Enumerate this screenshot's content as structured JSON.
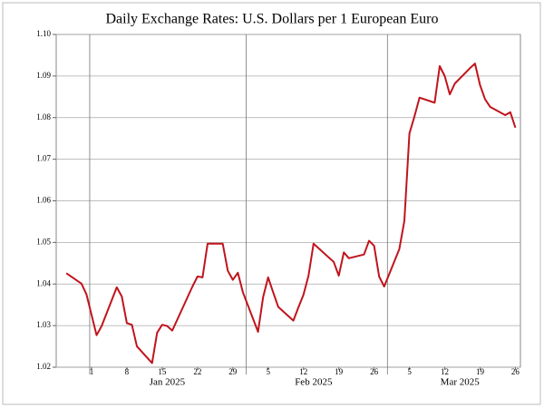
{
  "chart_data": {
    "type": "line",
    "title": "Daily Exchange Rates: U.S. Dollars per 1 European Euro",
    "x": [
      "2024-12-27",
      "2024-12-30",
      "2024-12-31",
      "2025-01-02",
      "2025-01-03",
      "2025-01-06",
      "2025-01-07",
      "2025-01-08",
      "2025-01-09",
      "2025-01-10",
      "2025-01-13",
      "2025-01-14",
      "2025-01-15",
      "2025-01-16",
      "2025-01-17",
      "2025-01-21",
      "2025-01-22",
      "2025-01-23",
      "2025-01-24",
      "2025-01-27",
      "2025-01-28",
      "2025-01-29",
      "2025-01-30",
      "2025-01-31",
      "2025-02-03",
      "2025-02-04",
      "2025-02-05",
      "2025-02-06",
      "2025-02-07",
      "2025-02-10",
      "2025-02-11",
      "2025-02-12",
      "2025-02-13",
      "2025-02-14",
      "2025-02-18",
      "2025-02-19",
      "2025-02-20",
      "2025-02-21",
      "2025-02-24",
      "2025-02-25",
      "2025-02-26",
      "2025-02-27",
      "2025-02-28",
      "2025-03-03",
      "2025-03-04",
      "2025-03-05",
      "2025-03-06",
      "2025-03-07",
      "2025-03-10",
      "2025-03-11",
      "2025-03-12",
      "2025-03-13",
      "2025-03-14",
      "2025-03-17",
      "2025-03-18",
      "2025-03-19",
      "2025-03-20",
      "2025-03-21",
      "2025-03-24",
      "2025-03-25",
      "2025-03-26"
    ],
    "series": [
      {
        "color": "#c0141c",
        "values": [
          1.0426,
          1.0401,
          1.0375,
          1.0277,
          1.0299,
          1.0392,
          1.037,
          1.0306,
          1.0302,
          1.025,
          1.021,
          1.0283,
          1.0302,
          1.0299,
          1.0288,
          1.0394,
          1.0418,
          1.0416,
          1.0497,
          1.0497,
          1.0432,
          1.041,
          1.0427,
          1.038,
          1.0285,
          1.0368,
          1.0416,
          1.038,
          1.0345,
          1.0312,
          1.0344,
          1.0374,
          1.042,
          1.0497,
          1.0453,
          1.042,
          1.0476,
          1.0462,
          1.0471,
          1.0504,
          1.0492,
          1.0418,
          1.0394,
          1.0484,
          1.0552,
          1.0762,
          1.0803,
          1.0848,
          1.0836,
          1.0924,
          1.09,
          1.0856,
          1.0882,
          1.0919,
          1.093,
          1.0878,
          1.0844,
          1.0826,
          1.0806,
          1.0813,
          1.0776
        ]
      }
    ],
    "xlim": [
      "2024-12-25",
      "2025-03-27"
    ],
    "xticks": [
      {
        "value": "2025-01-01",
        "label": "1"
      },
      {
        "value": "2025-01-08",
        "label": "8"
      },
      {
        "value": "2025-01-15",
        "label": "15"
      },
      {
        "value": "2025-01-22",
        "label": "22"
      },
      {
        "value": "2025-01-29",
        "label": "29"
      },
      {
        "value": "2025-02-05",
        "label": "5"
      },
      {
        "value": "2025-02-12",
        "label": "12"
      },
      {
        "value": "2025-02-19",
        "label": "19"
      },
      {
        "value": "2025-02-26",
        "label": "26"
      },
      {
        "value": "2025-03-05",
        "label": "5"
      },
      {
        "value": "2025-03-12",
        "label": "12"
      },
      {
        "value": "2025-03-19",
        "label": "19"
      },
      {
        "value": "2025-03-26",
        "label": "26"
      }
    ],
    "month_labels": [
      {
        "value": "2025-01-16",
        "label": "Jan 2025"
      },
      {
        "value": "2025-02-14",
        "label": "Feb 2025"
      },
      {
        "value": "2025-03-15",
        "label": "Mar 2025"
      }
    ],
    "xgrid": [
      "2025-01-01",
      "2025-02-01",
      "2025-03-01"
    ],
    "ylim": [
      1.02,
      1.1
    ],
    "yticks": [
      {
        "value": 1.02,
        "label": "1.02"
      },
      {
        "value": 1.03,
        "label": "1.03"
      },
      {
        "value": 1.04,
        "label": "1.04"
      },
      {
        "value": 1.05,
        "label": "1.05"
      },
      {
        "value": 1.06,
        "label": "1.06"
      },
      {
        "value": 1.07,
        "label": "1.07"
      },
      {
        "value": 1.08,
        "label": "1.08"
      },
      {
        "value": 1.09,
        "label": "1.09"
      },
      {
        "value": 1.1,
        "label": "1.10"
      }
    ],
    "grid": true
  }
}
